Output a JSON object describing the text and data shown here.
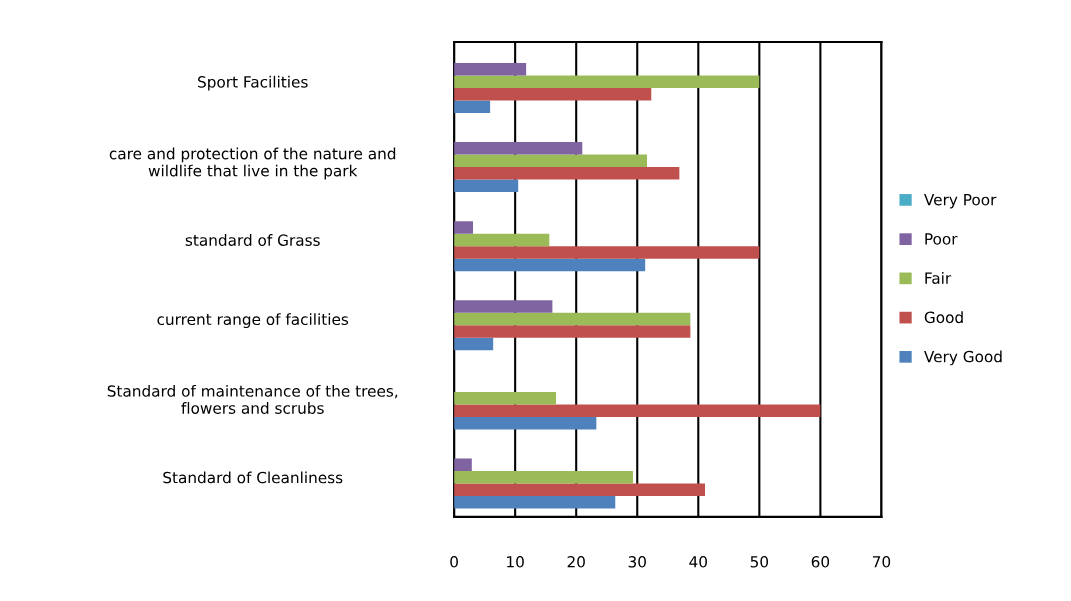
{
  "chart_data": {
    "type": "bar",
    "orientation": "horizontal",
    "categories": [
      "Sport Facilities",
      "care and protection of the nature and\nwildlife that live in the park",
      "standard of Grass",
      "current range of facilities",
      "Standard of maintenance of the trees,\nflowers and scrubs",
      "Standard of Cleanliness"
    ],
    "series": [
      {
        "name": "Very Good",
        "color": "#4f81bd",
        "values": [
          5.9,
          10.5,
          31.3,
          6.4,
          23.3,
          26.4
        ]
      },
      {
        "name": "Good",
        "color": "#c0504d",
        "values": [
          32.3,
          36.9,
          50,
          38.7,
          60,
          41.1
        ]
      },
      {
        "name": "Fair",
        "color": "#9bbb59",
        "values": [
          50,
          31.6,
          15.6,
          38.7,
          16.7,
          29.3
        ]
      },
      {
        "name": "Poor",
        "color": "#8064a2",
        "values": [
          11.8,
          21,
          3.1,
          16.1,
          0,
          2.9
        ]
      },
      {
        "name": "Very Poor",
        "color": "#4bacc6",
        "values": [
          0,
          0,
          0,
          0,
          0,
          0
        ]
      }
    ],
    "xlim": [
      0,
      70
    ],
    "xticks": [
      0,
      10,
      20,
      30,
      40,
      50,
      60,
      70
    ],
    "grid": "x",
    "legend": "right"
  }
}
